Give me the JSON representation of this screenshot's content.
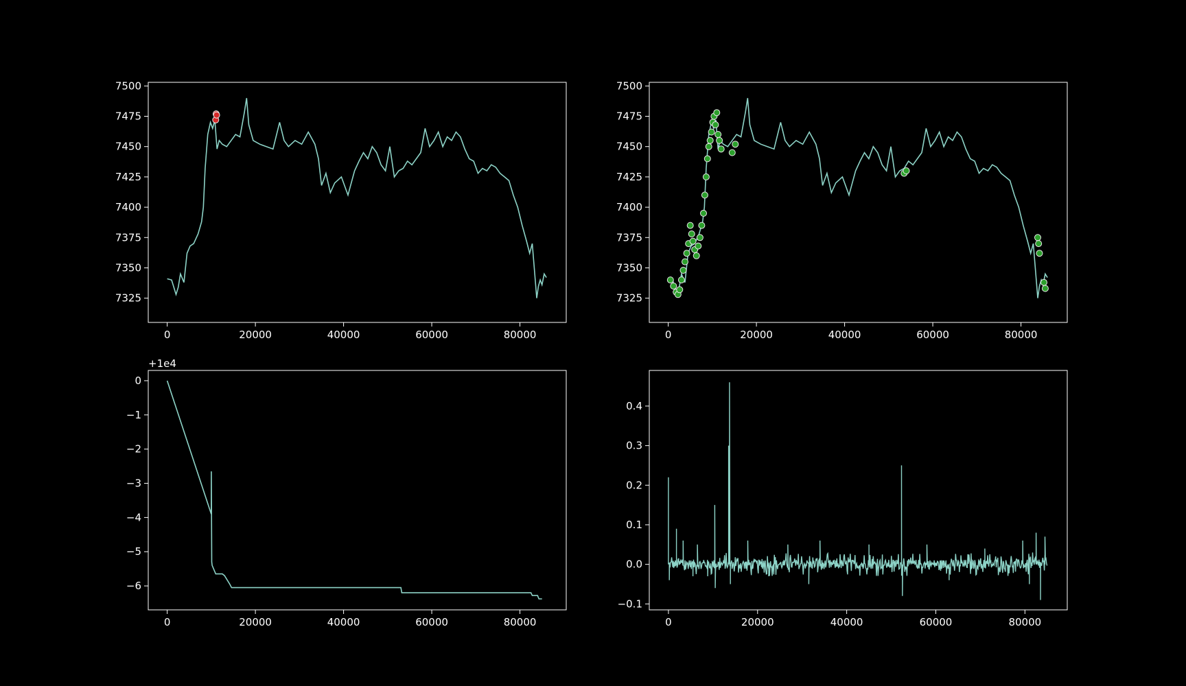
{
  "figure": {
    "background": "#000000",
    "axis_color": "#ffffff",
    "line_color": "#8dd3c7"
  },
  "chart_data": [
    {
      "type": "line",
      "title": "",
      "xlabel": "",
      "ylabel": "",
      "xlim": [
        -4300,
        90500
      ],
      "ylim": [
        7305,
        7503
      ],
      "xticks": [
        0,
        20000,
        40000,
        60000,
        80000
      ],
      "yticks": [
        7325,
        7350,
        7375,
        7400,
        7425,
        7450,
        7475,
        7500
      ],
      "offset_label": "",
      "series": [
        {
          "style": "line",
          "color": "#8dd3c7",
          "x": [
            0,
            1000,
            2000,
            2500,
            3000,
            3800,
            4500,
            5200,
            6000,
            7000,
            7800,
            8200,
            8600,
            9200,
            9800,
            10300,
            10800,
            11300,
            11800,
            12500,
            13500,
            14500,
            15500,
            16500,
            17500,
            18000,
            18500,
            19500,
            21000,
            22500,
            24000,
            25500,
            26500,
            27500,
            29000,
            30500,
            32000,
            33500,
            34300,
            35000,
            36000,
            37000,
            38000,
            39500,
            41000,
            42500,
            43500,
            44500,
            45500,
            46500,
            47500,
            48500,
            49500,
            50500,
            51500,
            52500,
            53500,
            54500,
            55500,
            56500,
            57500,
            58500,
            59500,
            60500,
            61500,
            62500,
            63500,
            64500,
            65500,
            66500,
            67500,
            68500,
            69500,
            70500,
            71500,
            72500,
            73500,
            74500,
            75500,
            76500,
            77500,
            78500,
            79500,
            80500,
            81500,
            82200,
            82800,
            83300,
            83800,
            84200,
            84600,
            85000,
            85500,
            86000
          ],
          "y": [
            7341,
            7340,
            7328,
            7334,
            7345,
            7338,
            7362,
            7368,
            7370,
            7378,
            7388,
            7400,
            7432,
            7460,
            7470,
            7465,
            7472,
            7448,
            7455,
            7452,
            7450,
            7455,
            7460,
            7458,
            7478,
            7490,
            7468,
            7455,
            7452,
            7450,
            7448,
            7470,
            7455,
            7450,
            7455,
            7452,
            7462,
            7452,
            7440,
            7418,
            7428,
            7412,
            7420,
            7425,
            7410,
            7430,
            7438,
            7445,
            7440,
            7450,
            7445,
            7435,
            7430,
            7450,
            7425,
            7430,
            7432,
            7438,
            7435,
            7440,
            7445,
            7465,
            7450,
            7455,
            7462,
            7450,
            7458,
            7455,
            7462,
            7458,
            7448,
            7440,
            7438,
            7428,
            7432,
            7430,
            7435,
            7433,
            7428,
            7425,
            7422,
            7410,
            7400,
            7385,
            7372,
            7362,
            7370,
            7348,
            7325,
            7335,
            7340,
            7336,
            7345,
            7342
          ]
        },
        {
          "style": "markers",
          "color": "#d62728",
          "x": [
            11000,
            11100,
            11200
          ],
          "y": [
            7472,
            7477,
            7476
          ]
        }
      ]
    },
    {
      "type": "line",
      "title": "",
      "xlabel": "",
      "ylabel": "",
      "xlim": [
        -4300,
        90500
      ],
      "ylim": [
        7305,
        7503
      ],
      "xticks": [
        0,
        20000,
        40000,
        60000,
        80000
      ],
      "yticks": [
        7325,
        7350,
        7375,
        7400,
        7425,
        7450,
        7475,
        7500
      ],
      "offset_label": "",
      "series": [
        {
          "style": "line",
          "color": "#8dd3c7",
          "x": [
            0,
            1000,
            2000,
            2500,
            3000,
            3800,
            4500,
            5200,
            6000,
            7000,
            7800,
            8200,
            8600,
            9200,
            9800,
            10300,
            10800,
            11300,
            11800,
            12500,
            13500,
            14500,
            15500,
            16500,
            17500,
            18000,
            18500,
            19500,
            21000,
            22500,
            24000,
            25500,
            26500,
            27500,
            29000,
            30500,
            32000,
            33500,
            34300,
            35000,
            36000,
            37000,
            38000,
            39500,
            41000,
            42500,
            43500,
            44500,
            45500,
            46500,
            47500,
            48500,
            49500,
            50500,
            51500,
            52500,
            53500,
            54500,
            55500,
            56500,
            57500,
            58500,
            59500,
            60500,
            61500,
            62500,
            63500,
            64500,
            65500,
            66500,
            67500,
            68500,
            69500,
            70500,
            71500,
            72500,
            73500,
            74500,
            75500,
            76500,
            77500,
            78500,
            79500,
            80500,
            81500,
            82200,
            82800,
            83300,
            83800,
            84200,
            84600,
            85000,
            85500,
            86000
          ],
          "y": [
            7341,
            7340,
            7328,
            7334,
            7345,
            7338,
            7362,
            7368,
            7370,
            7378,
            7388,
            7400,
            7432,
            7460,
            7470,
            7465,
            7472,
            7448,
            7455,
            7452,
            7450,
            7455,
            7460,
            7458,
            7478,
            7490,
            7468,
            7455,
            7452,
            7450,
            7448,
            7470,
            7455,
            7450,
            7455,
            7452,
            7462,
            7452,
            7440,
            7418,
            7428,
            7412,
            7420,
            7425,
            7410,
            7430,
            7438,
            7445,
            7440,
            7450,
            7445,
            7435,
            7430,
            7450,
            7425,
            7430,
            7432,
            7438,
            7435,
            7440,
            7445,
            7465,
            7450,
            7455,
            7462,
            7450,
            7458,
            7455,
            7462,
            7458,
            7448,
            7440,
            7438,
            7428,
            7432,
            7430,
            7435,
            7433,
            7428,
            7425,
            7422,
            7410,
            7400,
            7385,
            7372,
            7362,
            7370,
            7348,
            7325,
            7335,
            7340,
            7336,
            7345,
            7342
          ]
        },
        {
          "style": "markers",
          "color": "#2ca02c",
          "x": [
            500,
            1200,
            1800,
            2200,
            2600,
            3000,
            3400,
            3800,
            4200,
            4600,
            5000,
            5300,
            5600,
            6000,
            6400,
            6800,
            7200,
            7600,
            8000,
            8300,
            8600,
            8900,
            9200,
            9500,
            9800,
            10100,
            10400,
            10700,
            11000,
            11300,
            11600,
            12000,
            14500,
            15200,
            53500,
            54000,
            83800,
            84000,
            84200,
            85200,
            85500
          ],
          "y": [
            7340,
            7335,
            7330,
            7328,
            7332,
            7340,
            7348,
            7355,
            7362,
            7370,
            7385,
            7378,
            7372,
            7365,
            7360,
            7368,
            7375,
            7385,
            7395,
            7410,
            7425,
            7440,
            7450,
            7455,
            7462,
            7470,
            7475,
            7468,
            7478,
            7460,
            7455,
            7448,
            7445,
            7452,
            7428,
            7430,
            7375,
            7370,
            7362,
            7338,
            7333
          ]
        }
      ]
    },
    {
      "type": "line",
      "title": "",
      "xlabel": "",
      "ylabel": "",
      "xlim": [
        -4300,
        90500
      ],
      "ylim": [
        -6.7,
        0.3
      ],
      "xticks": [
        0,
        20000,
        40000,
        60000,
        80000
      ],
      "yticks": [
        0,
        -1,
        -2,
        -3,
        -4,
        -5,
        -6
      ],
      "ytick_labels": [
        "0",
        "−1",
        "−2",
        "−3",
        "−4",
        "−5",
        "−6"
      ],
      "offset_label": "+1e4",
      "series": [
        {
          "style": "line",
          "color": "#8dd3c7",
          "x": [
            0,
            9990,
            10000,
            10050,
            10100,
            10200,
            11000,
            12500,
            13000,
            14200,
            14600,
            20000,
            30000,
            40000,
            50000,
            53000,
            53200,
            60000,
            70000,
            82500,
            82800,
            84000,
            84300,
            85000
          ],
          "y": [
            0,
            -3.9,
            -2.65,
            -4.0,
            -5.3,
            -5.4,
            -5.65,
            -5.65,
            -5.7,
            -5.95,
            -6.05,
            -6.05,
            -6.05,
            -6.05,
            -6.05,
            -6.05,
            -6.2,
            -6.2,
            -6.2,
            -6.2,
            -6.28,
            -6.28,
            -6.38,
            -6.38
          ]
        }
      ]
    },
    {
      "type": "line",
      "title": "",
      "xlabel": "",
      "ylabel": "",
      "xlim": [
        -4300,
        89500
      ],
      "ylim": [
        -0.115,
        0.49
      ],
      "xticks": [
        0,
        20000,
        40000,
        60000,
        80000
      ],
      "yticks": [
        -0.1,
        0.0,
        0.1,
        0.2,
        0.3,
        0.4
      ],
      "ytick_labels": [
        "−0.1",
        "0.0",
        "0.1",
        "0.2",
        "0.3",
        "0.4"
      ],
      "offset_label": "",
      "series": [
        {
          "style": "line",
          "color": "#8dd3c7",
          "spikes": [
            [
              0,
              0.22
            ],
            [
              200,
              -0.04
            ],
            [
              1800,
              0.09
            ],
            [
              3300,
              0.06
            ],
            [
              5500,
              -0.03
            ],
            [
              6500,
              0.05
            ],
            [
              8800,
              -0.03
            ],
            [
              10400,
              0.15
            ],
            [
              10500,
              -0.06
            ],
            [
              13500,
              0.3
            ],
            [
              13700,
              0.46
            ],
            [
              13900,
              -0.05
            ],
            [
              17800,
              0.06
            ],
            [
              22500,
              -0.03
            ],
            [
              26800,
              0.05
            ],
            [
              31500,
              -0.05
            ],
            [
              34000,
              0.06
            ],
            [
              45000,
              0.05
            ],
            [
              52300,
              0.25
            ],
            [
              52500,
              -0.08
            ],
            [
              58000,
              0.05
            ],
            [
              63000,
              -0.04
            ],
            [
              71000,
              0.04
            ],
            [
              79500,
              0.06
            ],
            [
              81000,
              -0.05
            ],
            [
              82500,
              0.08
            ],
            [
              83500,
              -0.09
            ],
            [
              84500,
              0.07
            ],
            [
              85000,
              -0.04
            ]
          ],
          "noise_amp": 0.03,
          "x_end": 85000
        }
      ]
    }
  ]
}
